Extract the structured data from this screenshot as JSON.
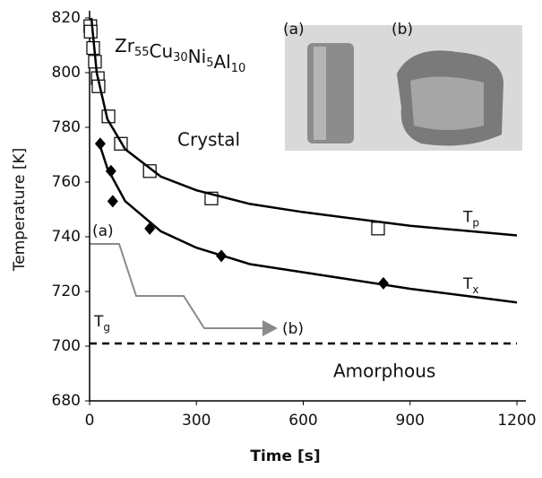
{
  "chart_data": {
    "type": "scatter",
    "xlabel": "Time [s]",
    "ylabel": "Temperature [K]",
    "xlim": [
      0,
      1200
    ],
    "ylim": [
      680,
      820
    ],
    "xticks": [
      0,
      300,
      600,
      900,
      1200
    ],
    "yticks": [
      680,
      700,
      720,
      740,
      760,
      780,
      800,
      820
    ],
    "composition": [
      [
        "Zr",
        "55"
      ],
      [
        "Cu",
        "30"
      ],
      [
        "Ni",
        "5"
      ],
      [
        "Al",
        "10"
      ]
    ],
    "region_labels": [
      "Crystal",
      "Amorphous"
    ],
    "path_labels": [
      "(a)",
      "(b)"
    ],
    "inset_labels": [
      "(a)",
      "(b)"
    ],
    "reference_line": {
      "value": 701,
      "label_main": "T",
      "label_sub": "g",
      "color": "#000",
      "style": "dashed"
    },
    "series": [
      {
        "marker": "square",
        "color": "#000",
        "x": [
          2,
          3,
          10,
          15,
          23,
          25,
          53,
          88,
          169,
          342,
          810
        ],
        "values": [
          817,
          815,
          809,
          804,
          798,
          795,
          784,
          774,
          764,
          754,
          743
        ]
      },
      {
        "marker": "diamond",
        "color": "#000",
        "x": [
          30,
          60,
          65,
          169,
          370,
          825
        ],
        "values": [
          774,
          764,
          753,
          743,
          733,
          723
        ]
      },
      {
        "marker": "line",
        "color": "#000",
        "label_main": "T",
        "label_sub": "p",
        "x": [
          5,
          20,
          50,
          100,
          200,
          300,
          450,
          600,
          900,
          1200
        ],
        "values": [
          820,
          800,
          783,
          772,
          762,
          757,
          752,
          749,
          744,
          740.5
        ]
      },
      {
        "marker": "line",
        "color": "#000",
        "label_main": "T",
        "label_sub": "x",
        "x": [
          25,
          50,
          100,
          200,
          300,
          450,
          600,
          900,
          1200
        ],
        "values": [
          775,
          765,
          753,
          742,
          736,
          730,
          727,
          721,
          716
        ]
      }
    ]
  }
}
